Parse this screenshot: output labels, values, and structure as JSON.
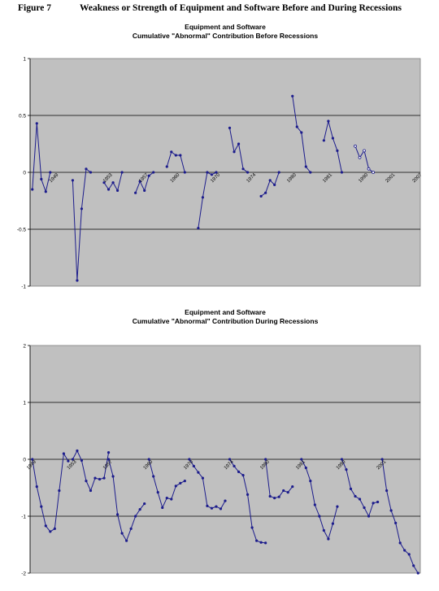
{
  "figure": {
    "label": "Figure 7",
    "title": "Weakness or Strength of Equipment and Software Before and During Recessions"
  },
  "chart_data": [
    {
      "type": "line",
      "title": "Equipment and Software",
      "subtitle": "Cumulative \"Abnormal\" Contribution Before Recessions",
      "ylim": [
        -1,
        1
      ],
      "yticks": [
        -1,
        -0.5,
        0,
        0.5,
        1
      ],
      "ytick_labels": [
        "-1",
        "-0.5",
        "0",
        "0.5",
        "1"
      ],
      "grid": true,
      "plot_background": "#c0c0c0",
      "line_color": "#1c1c8c",
      "point_count": 87,
      "category_labels": [
        {
          "label": "1949",
          "index": 5
        },
        {
          "label": "1953",
          "index": 17
        },
        {
          "label": "1957",
          "index": 25
        },
        {
          "label": "1960",
          "index": 32
        },
        {
          "label": "1970",
          "index": 41
        },
        {
          "label": "1974",
          "index": 49
        },
        {
          "label": "1980",
          "index": 58
        },
        {
          "label": "1981",
          "index": 66
        },
        {
          "label": "1990",
          "index": 74
        },
        {
          "label": "2001",
          "index": 80
        },
        {
          "label": "2007",
          "index": 86
        }
      ],
      "series": [
        {
          "segments": [
            {
              "start": 0,
              "values": [
                -0.15,
                0.43,
                -0.06,
                -0.17,
                0.0
              ]
            },
            {
              "start": 9,
              "values": [
                -0.07,
                -0.95,
                -0.32,
                0.03,
                0.0
              ]
            },
            {
              "start": 16,
              "values": [
                -0.09,
                -0.15,
                -0.09,
                -0.16,
                0.0
              ]
            },
            {
              "start": 23,
              "values": [
                -0.18,
                -0.08,
                -0.16,
                -0.03,
                0.0
              ]
            },
            {
              "start": 30,
              "values": [
                0.05,
                0.18,
                0.15,
                0.15,
                0.0
              ]
            },
            {
              "start": 37,
              "values": [
                -0.49,
                -0.22,
                0.0,
                -0.02,
                0.0
              ]
            },
            {
              "start": 44,
              "values": [
                0.39,
                0.18,
                0.25,
                0.03,
                0.0
              ]
            },
            {
              "start": 51,
              "values": [
                -0.21,
                -0.18,
                -0.07,
                -0.11,
                0.0
              ]
            },
            {
              "start": 58,
              "values": [
                0.67,
                0.4,
                0.35,
                0.05,
                0.0
              ]
            },
            {
              "start": 65,
              "values": [
                0.28,
                0.45,
                0.3,
                0.19,
                0.0
              ]
            },
            {
              "start": 72,
              "values": [
                0.23,
                0.13,
                0.19,
                0.03,
                0.0
              ],
              "open_markers": true
            }
          ]
        }
      ]
    },
    {
      "type": "line",
      "title": "Equipment and Software",
      "subtitle": "Cumulative \"Abnormal\" Contribution During Recessions",
      "ylim": [
        -2,
        2
      ],
      "yticks": [
        -2,
        -1,
        0,
        1,
        2
      ],
      "ytick_labels": [
        "-2",
        "-1",
        "0",
        "1",
        "2"
      ],
      "grid": true,
      "plot_background": "#c0c0c0",
      "line_color": "#1c1c8c",
      "point_count": 87,
      "category_labels": [
        {
          "label": "1949",
          "index": 0
        },
        {
          "label": "1953",
          "index": 9
        },
        {
          "label": "1957",
          "index": 17
        },
        {
          "label": "1960",
          "index": 26
        },
        {
          "label": "1970",
          "index": 35
        },
        {
          "label": "1974",
          "index": 44
        },
        {
          "label": "1980",
          "index": 52
        },
        {
          "label": "1981",
          "index": 60
        },
        {
          "label": "1990",
          "index": 69
        },
        {
          "label": "2001",
          "index": 78
        }
      ],
      "series": [
        {
          "segments": [
            {
              "start": 0,
              "values": [
                0.0,
                -0.48,
                -0.83,
                -1.17,
                -1.27,
                -1.22,
                -0.55,
                0.1,
                -0.03
              ]
            },
            {
              "start": 9,
              "values": [
                0.0,
                0.15,
                -0.02,
                -0.38,
                -0.55,
                -0.33,
                -0.35,
                -0.33,
                0.12
              ]
            },
            {
              "start": 17,
              "values": [
                0.0,
                -0.3,
                -0.97,
                -1.3,
                -1.43,
                -1.22,
                -1.0,
                -0.88,
                -0.78
              ]
            },
            {
              "start": 26,
              "values": [
                0.0,
                -0.3,
                -0.58,
                -0.85,
                -0.68,
                -0.7,
                -0.47,
                -0.42,
                -0.38
              ]
            },
            {
              "start": 35,
              "values": [
                0.0,
                -0.12,
                -0.23,
                -0.33,
                -0.82,
                -0.86,
                -0.83,
                -0.87,
                -0.73
              ]
            },
            {
              "start": 44,
              "values": [
                0.0,
                -0.12,
                -0.22,
                -0.28,
                -0.62,
                -1.2,
                -1.43,
                -1.46,
                -1.47
              ]
            },
            {
              "start": 52,
              "values": [
                0.0,
                -0.65,
                -0.68,
                -0.66,
                -0.55,
                -0.58,
                -0.48
              ]
            },
            {
              "start": 60,
              "values": [
                0.0,
                -0.15,
                -0.38,
                -0.8,
                -1.0,
                -1.25,
                -1.4,
                -1.13,
                -0.83
              ]
            },
            {
              "start": 69,
              "values": [
                0.0,
                -0.18,
                -0.52,
                -0.65,
                -0.7,
                -0.85,
                -1.0,
                -0.77,
                -0.75
              ]
            },
            {
              "start": 78,
              "values": [
                0.0,
                -0.55,
                -0.9,
                -1.12,
                -1.47,
                -1.6,
                -1.67,
                -1.87,
                -2.0
              ]
            }
          ]
        }
      ]
    }
  ]
}
